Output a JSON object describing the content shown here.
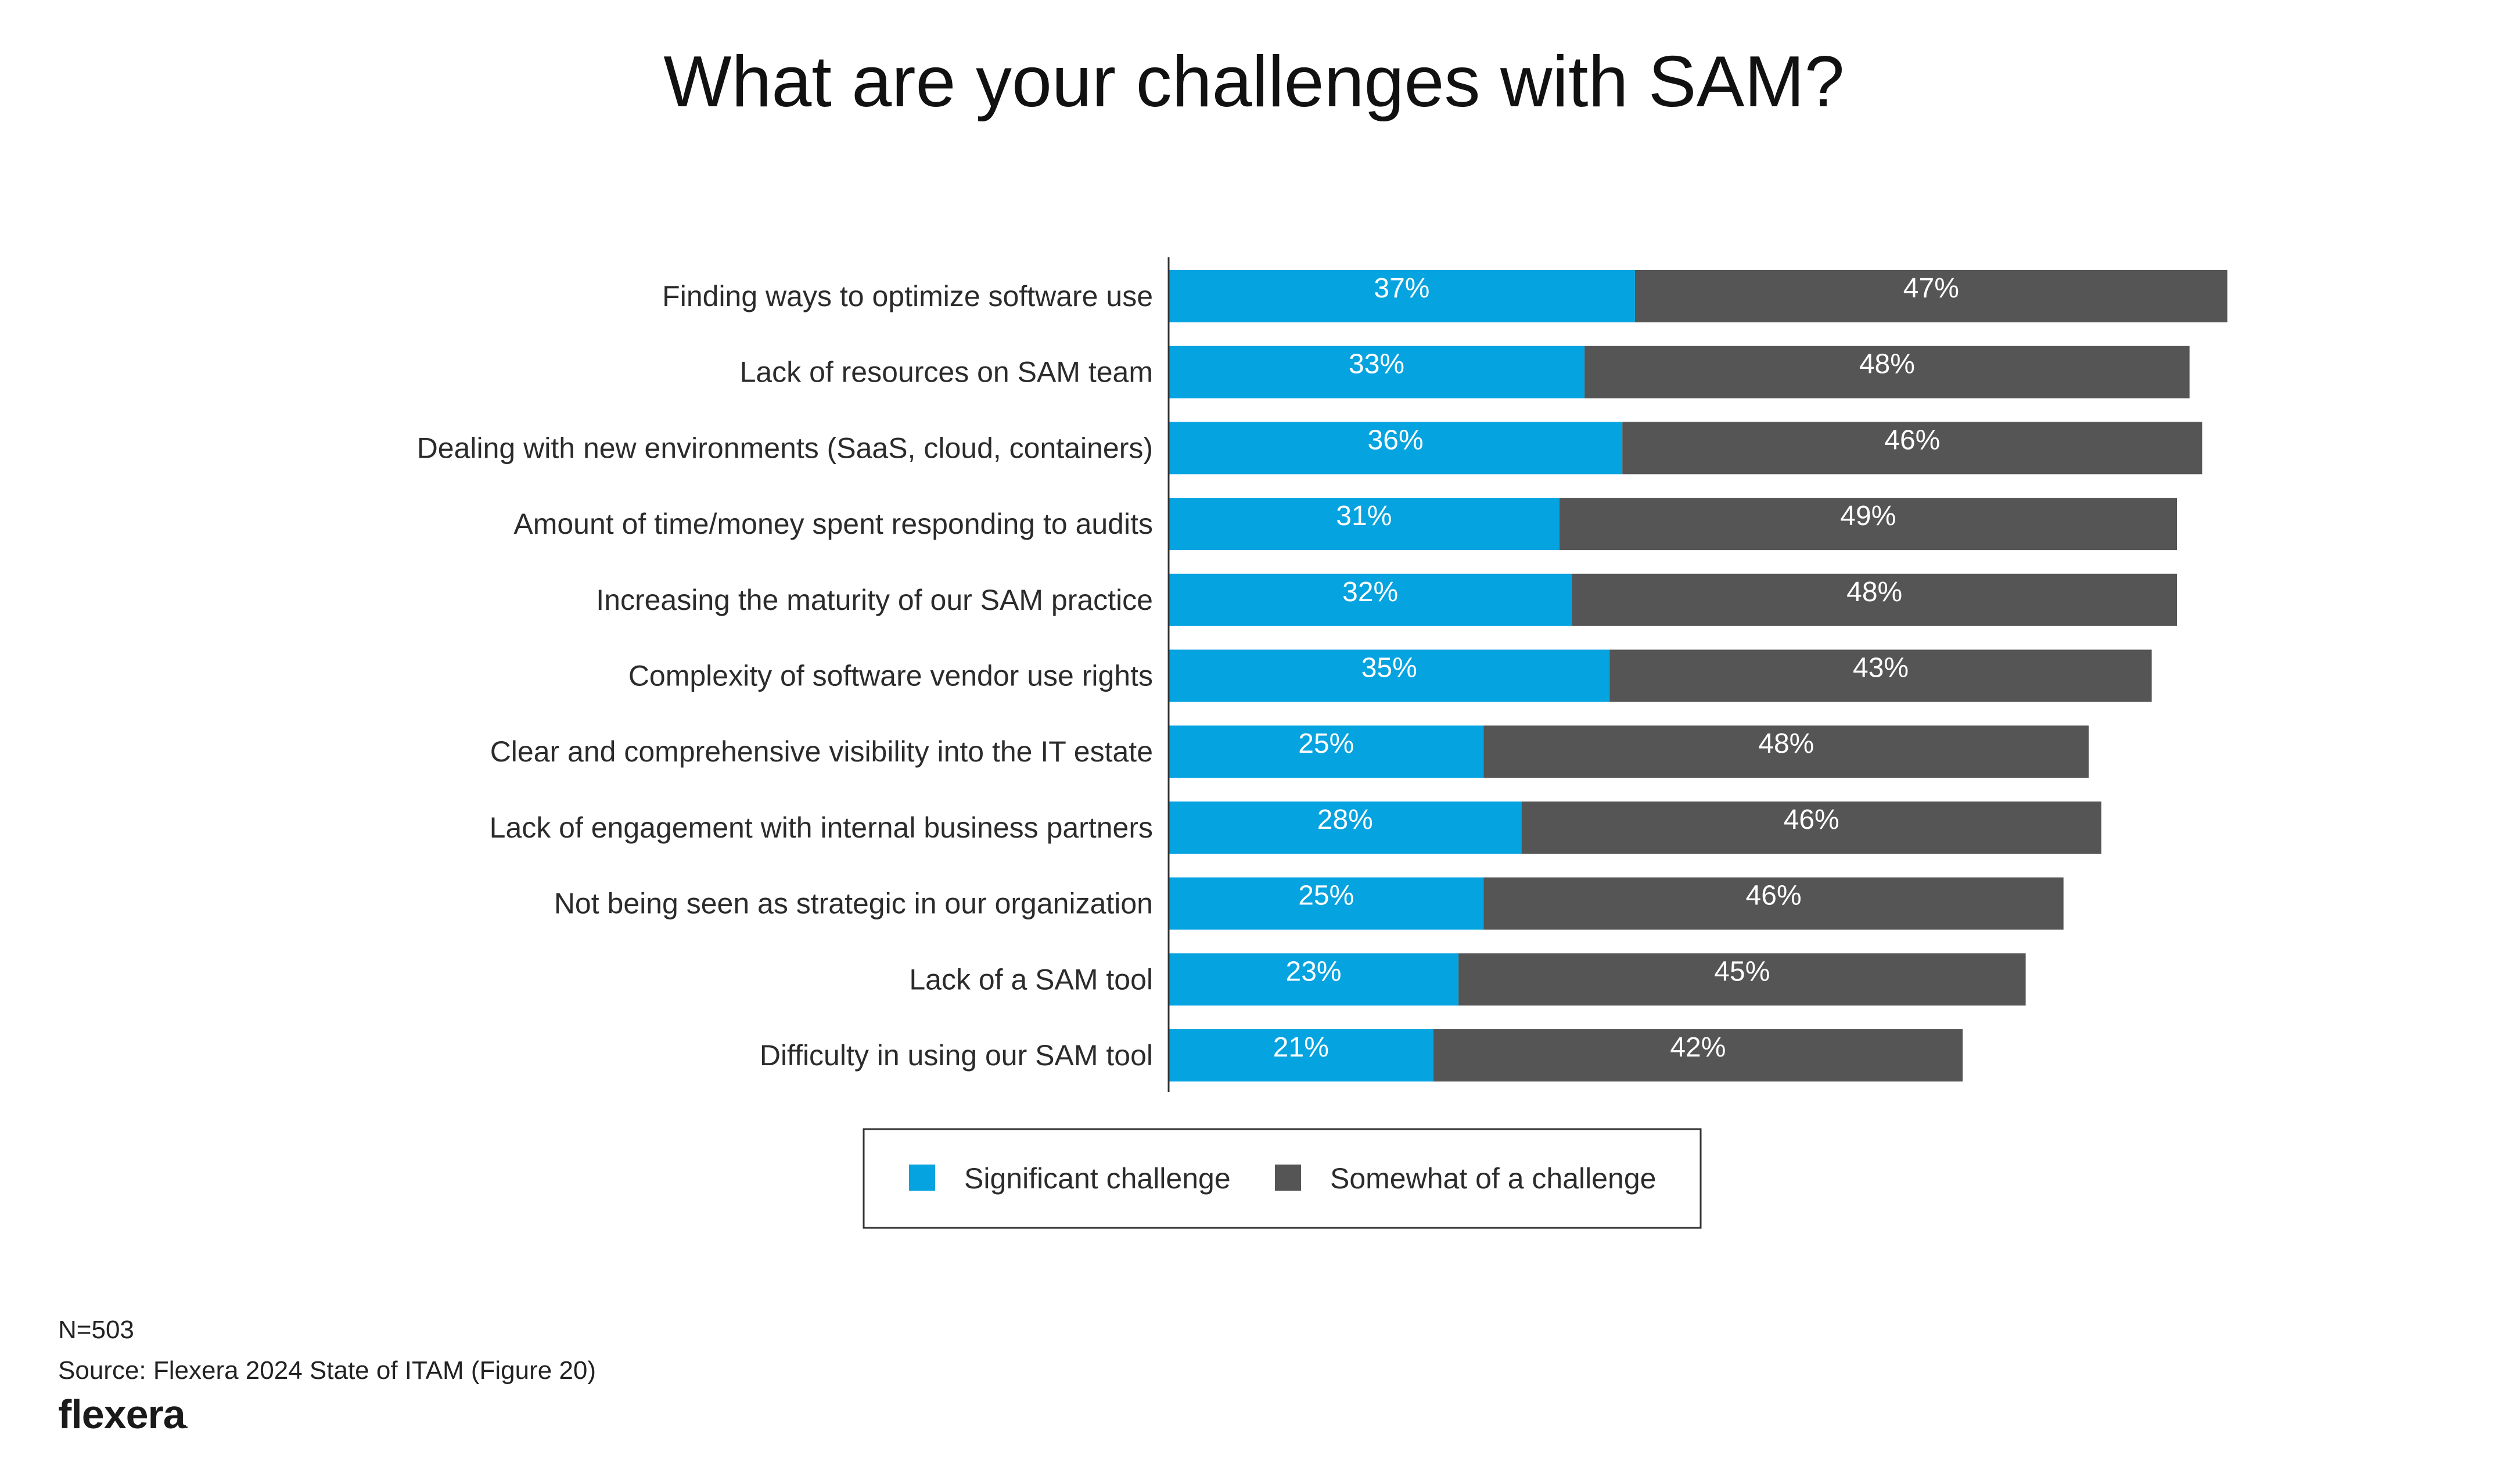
{
  "title": "What are your challenges with SAM?",
  "colors": {
    "significant": "#05a3e0",
    "somewhat": "#555555",
    "axis": "#333333",
    "legend_border": "#333333"
  },
  "chart_data": {
    "type": "bar",
    "orientation": "horizontal",
    "stacked": true,
    "title": "What are your challenges with SAM?",
    "categories": [
      "Finding ways to optimize software use",
      "Lack of resources on SAM team",
      "Dealing with new environments (SaaS, cloud, containers)",
      "Amount of time/money spent responding to audits",
      "Increasing the maturity of our SAM practice",
      "Complexity of software vendor use rights",
      "Clear and comprehensive visibility into the IT estate",
      "Lack of engagement with internal business partners",
      "Not being seen as strategic in our organization",
      "Lack of a SAM tool",
      "Difficulty in using our SAM tool"
    ],
    "series": [
      {
        "name": "Significant challenge",
        "values": [
          37,
          33,
          36,
          31,
          32,
          35,
          25,
          28,
          25,
          23,
          21
        ],
        "labels": [
          "37%",
          "33%",
          "36%",
          "31%",
          "32%",
          "35%",
          "25%",
          "28%",
          "25%",
          "23%",
          "21%"
        ]
      },
      {
        "name": "Somewhat of a challenge",
        "values": [
          47,
          48,
          46,
          49,
          48,
          43,
          48,
          46,
          46,
          45,
          42
        ],
        "labels": [
          "47%",
          "48%",
          "46%",
          "49%",
          "48%",
          "43%",
          "48%",
          "46%",
          "46%",
          "45%",
          "42%"
        ]
      }
    ],
    "xlabel": "",
    "ylabel": "",
    "xlim": [
      0,
      100
    ],
    "grid": false,
    "legend_position": "bottom-center"
  },
  "footer": {
    "n": "N=503",
    "source": "Source: Flexera 2024 State of ITAM (Figure 20)"
  },
  "brand": {
    "name": "flexera",
    "mark": "."
  }
}
